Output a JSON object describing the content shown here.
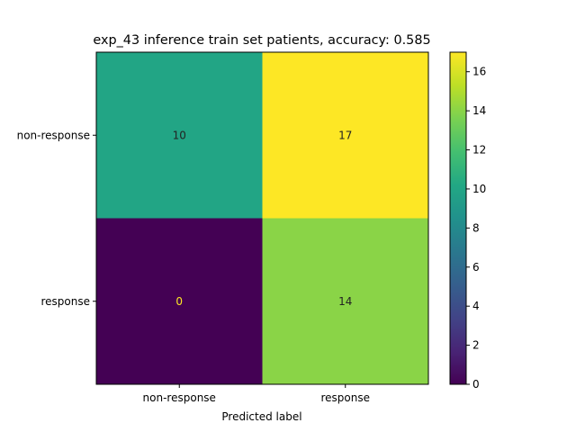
{
  "chart_data": {
    "type": "heatmap",
    "title": "exp_43 inference train set patients, accuracy: 0.585",
    "xlabel": "Predicted label",
    "ylabel": "",
    "x_categories": [
      "non-response",
      "response"
    ],
    "y_categories": [
      "non-response",
      "response"
    ],
    "values": [
      [
        10,
        17
      ],
      [
        0,
        14
      ]
    ],
    "colormap": "viridis",
    "colorbar": {
      "min": 0,
      "max": 17,
      "ticks": [
        0,
        2,
        4,
        6,
        8,
        10,
        12,
        14,
        16
      ]
    },
    "cell_label_colors": {
      "dark": "#fde725",
      "light": "#222222"
    },
    "grid": false
  }
}
